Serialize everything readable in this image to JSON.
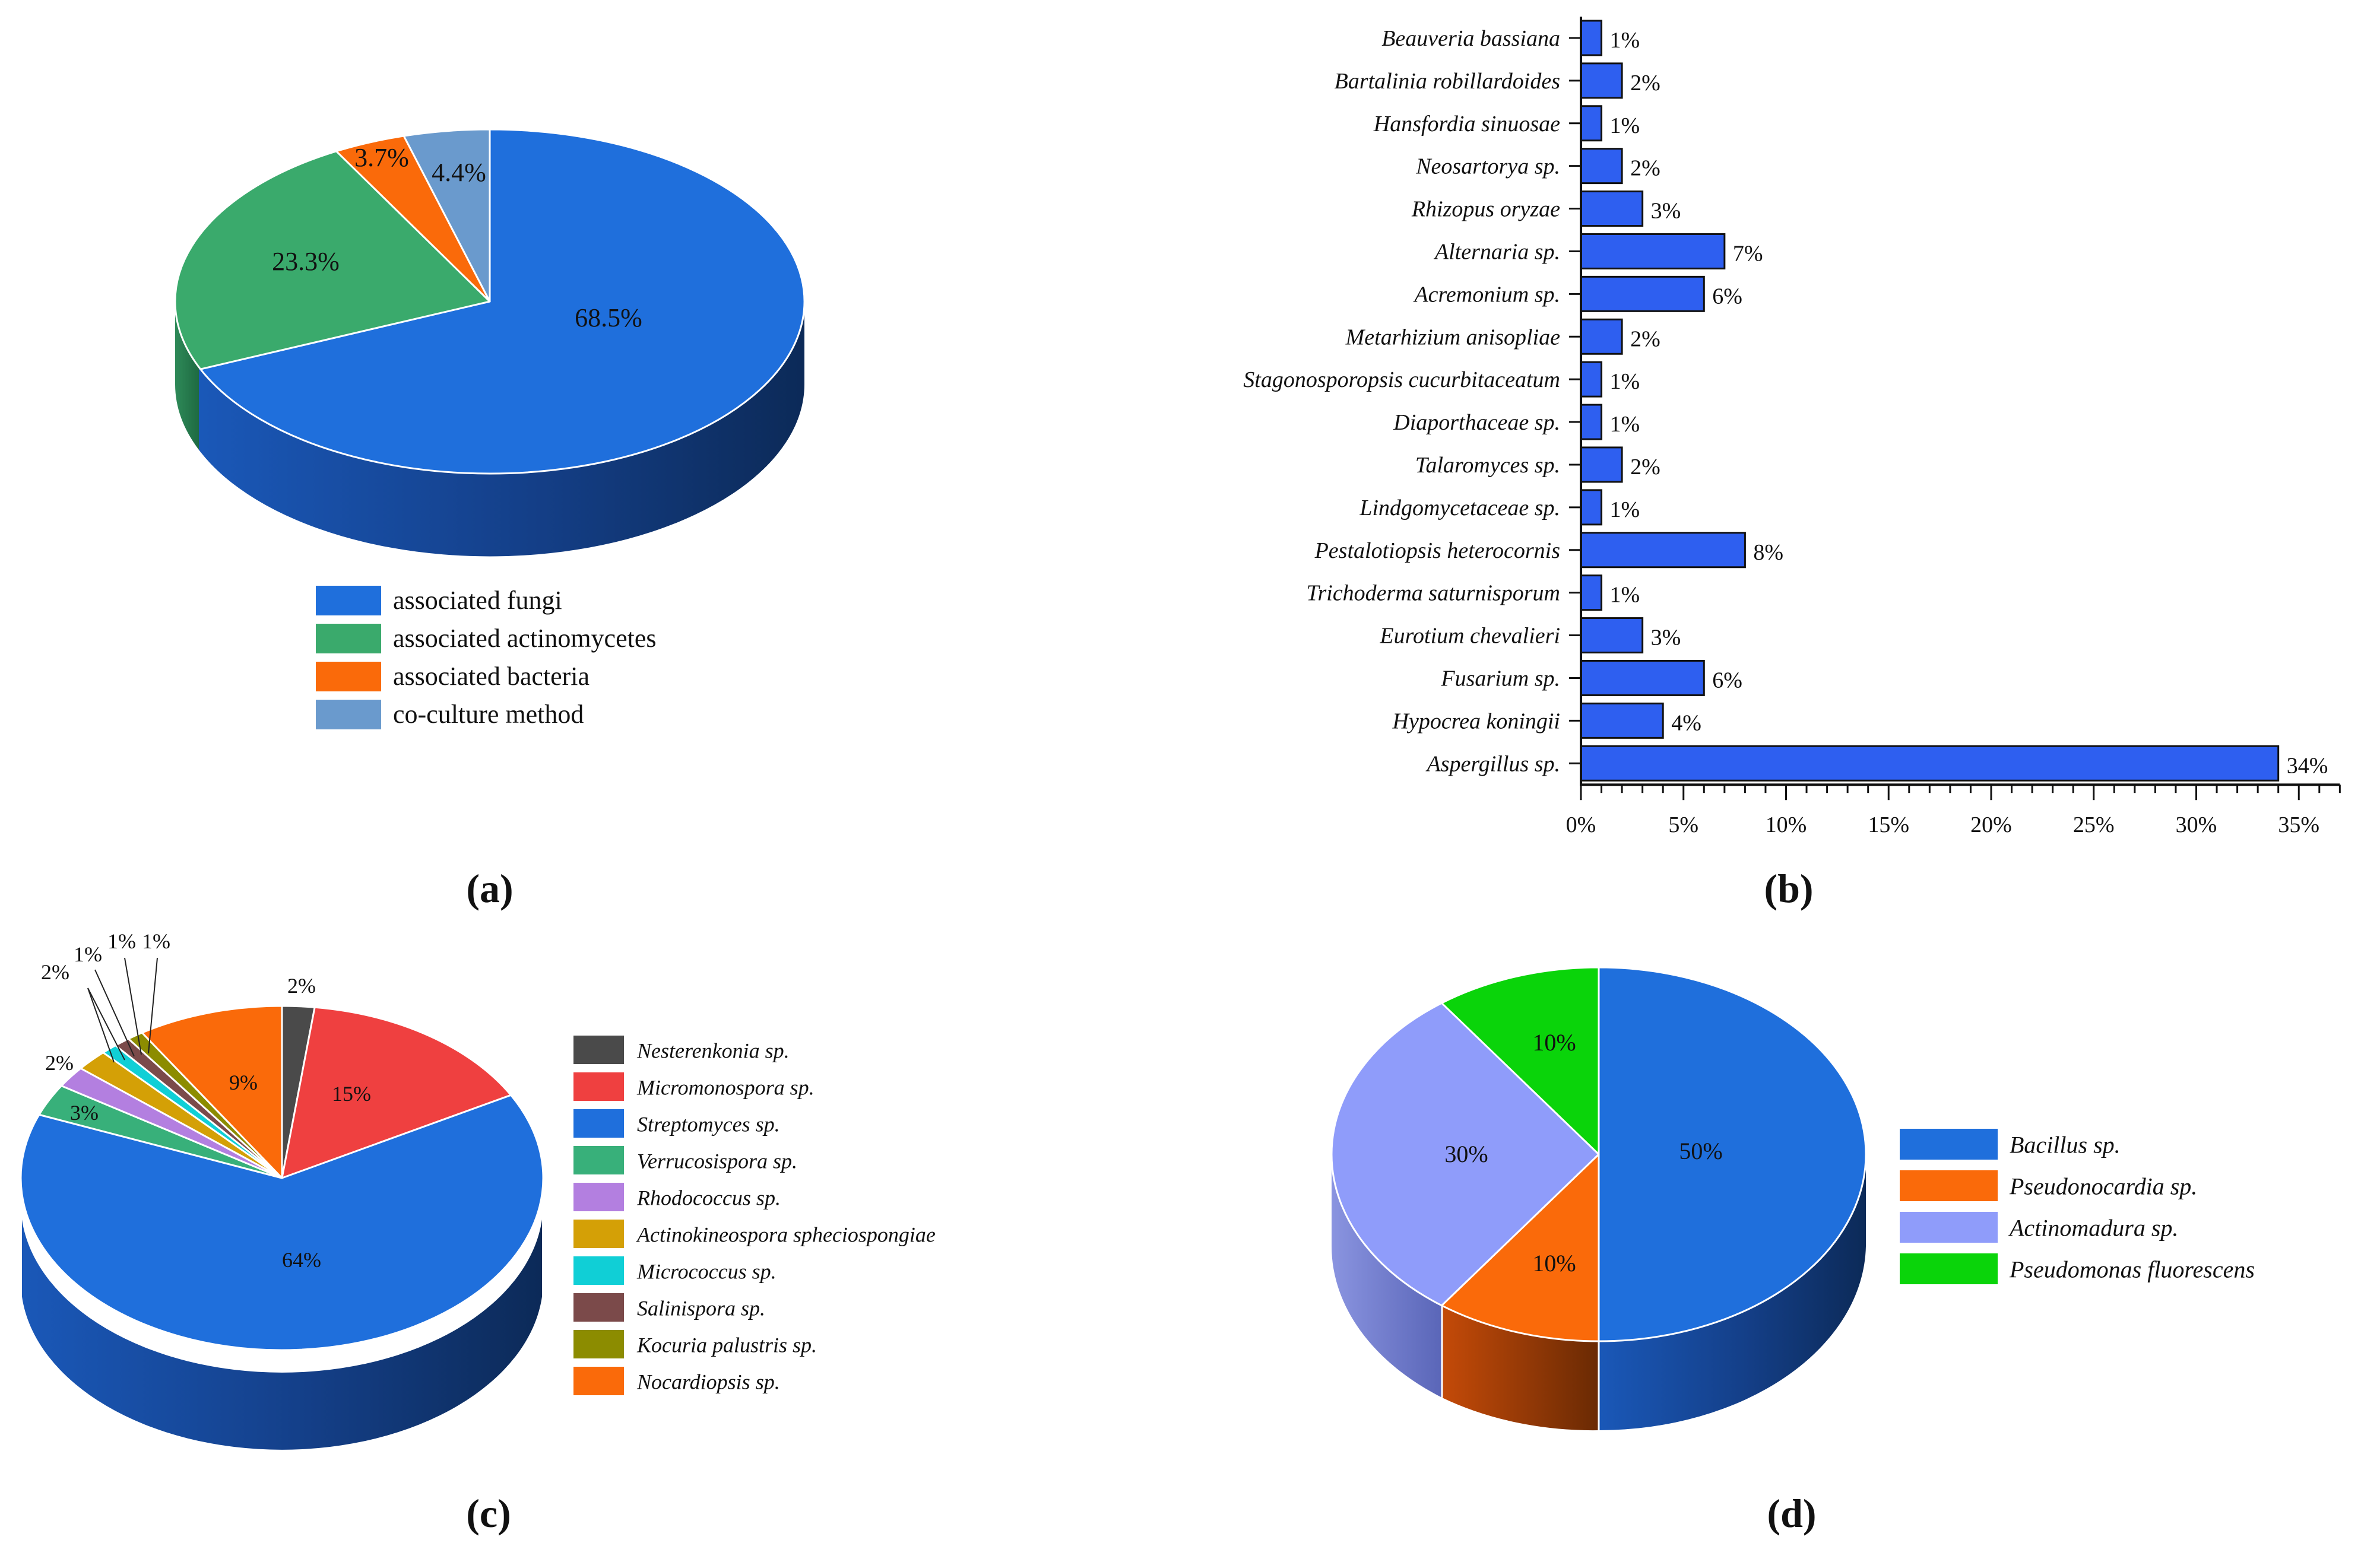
{
  "panels": {
    "a": "(a)",
    "b": "(b)",
    "c": "(c)",
    "d": "(d)"
  },
  "chart_data": [
    {
      "id": "a",
      "type": "pie",
      "title": "",
      "labels": [
        "associated fungi",
        "associated actinomycetes",
        "associated bacteria",
        "co-culture method"
      ],
      "values": [
        68.5,
        23.3,
        3.7,
        4.4
      ],
      "value_labels": [
        "68.5%",
        "23.3%",
        "3.7%",
        "4.4%"
      ],
      "colors": [
        "#1f6fdc",
        "#3aaa6c",
        "#fa6a0a",
        "#6a9acd"
      ],
      "legend": "bottom"
    },
    {
      "id": "b",
      "type": "bar",
      "orientation": "horizontal",
      "categories": [
        "Beauveria bassiana",
        "Bartalinia robillardoides",
        "Hansfordia sinuosae",
        "Neosartorya sp.",
        "Rhizopus oryzae",
        "Alternaria sp.",
        "Acremonium sp.",
        "Metarhizium anisopliae",
        "Stagonosporopsis cucurbitaceatum",
        "Diaporthaceae sp.",
        "Talaromyces sp.",
        "Lindgomycetaceae sp.",
        "Pestalotiopsis heterocornis",
        "Trichoderma saturnisporum",
        "Eurotium chevalieri",
        "Fusarium sp.",
        "Hypocrea koningii",
        "Aspergillus sp."
      ],
      "values": [
        1,
        2,
        1,
        2,
        3,
        7,
        6,
        2,
        1,
        1,
        2,
        1,
        8,
        1,
        3,
        6,
        4,
        34
      ],
      "value_labels": [
        "1%",
        "2%",
        "1%",
        "2%",
        "3%",
        "7%",
        "6%",
        "2%",
        "1%",
        "1%",
        "2%",
        "1%",
        "8%",
        "1%",
        "3%",
        "6%",
        "4%",
        "34%"
      ],
      "xticks": [
        "0%",
        "5%",
        "10%",
        "15%",
        "20%",
        "25%",
        "30%",
        "35%"
      ],
      "xlim": [
        0,
        37
      ],
      "color": "#2e5ff0",
      "xlabel": "",
      "ylabel": ""
    },
    {
      "id": "c",
      "type": "pie",
      "title": "",
      "labels": [
        "Nesterenkonia sp.",
        "Micromonospora sp.",
        "Streptomyces sp.",
        "Verrucosispora sp.",
        "Rhodococcus sp.",
        "Actinokineospora spheciospongiae",
        "Micrococcus sp.",
        "Salinispora sp.",
        "Kocuria palustris sp.",
        "Nocardiopsis sp."
      ],
      "values": [
        2,
        15,
        64,
        3,
        2,
        2,
        1,
        1,
        1,
        9
      ],
      "value_labels": [
        "2%",
        "15%",
        "64%",
        "3%",
        "2%",
        "2%",
        "1%",
        "1%",
        "1%",
        "9%"
      ],
      "colors": [
        "#4a4a4a",
        "#ef4040",
        "#1f6fdc",
        "#38b07a",
        "#b37fe0",
        "#d4a006",
        "#10cfd6",
        "#7b4a4a",
        "#8c8c00",
        "#fa6a0a"
      ],
      "legend": "right"
    },
    {
      "id": "d",
      "type": "pie",
      "title": "",
      "labels": [
        "Bacillus sp.",
        "Pseudonocardia sp.",
        "Actinomadura sp.",
        "Pseudomonas fluorescens"
      ],
      "values": [
        50,
        10,
        30,
        10
      ],
      "value_labels": [
        "50%",
        "10%",
        "30%",
        "10%"
      ],
      "colors": [
        "#1f6fdc",
        "#fa6a0a",
        "#8f9cfa",
        "#0ad40a"
      ],
      "legend": "right"
    }
  ]
}
